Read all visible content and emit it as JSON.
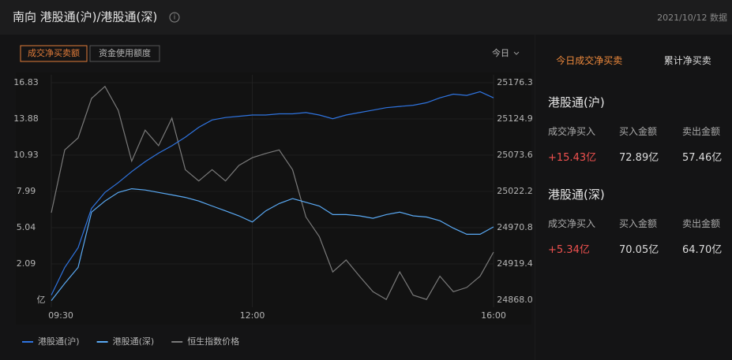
{
  "header": {
    "title": "南向 港股通(沪)/港股通(深)",
    "date": "2021/10/12 数据"
  },
  "toolbar": {
    "buttons": [
      "成交净买卖额",
      "资金使用额度"
    ],
    "period": "今日"
  },
  "chart_data": {
    "type": "line",
    "categories": [
      "09:30",
      null,
      null,
      null,
      null,
      null,
      null,
      null,
      null,
      null,
      null,
      null,
      null,
      null,
      null,
      "12:00",
      null,
      null,
      null,
      null,
      null,
      null,
      null,
      null,
      null,
      null,
      null,
      null,
      null,
      null,
      null,
      null,
      null,
      "16:00"
    ],
    "ylim": [
      -0.86,
      16.83
    ],
    "yticks": [
      2.09,
      5.04,
      7.99,
      10.93,
      13.88,
      16.83
    ],
    "y_unit": "亿",
    "y2lim": [
      24868,
      25176.3
    ],
    "y2ticks": [
      {
        "value": 24868,
        "label": "24868.0"
      },
      24919.4,
      24970.8,
      25022.2,
      25073.6,
      25124.9,
      25176.3
    ],
    "series": [
      {
        "name": "港股通(沪)",
        "color": "#2f74e0",
        "values": [
          -0.45,
          1.8,
          3.4,
          6.6,
          7.9,
          8.7,
          9.6,
          10.4,
          11.1,
          11.7,
          12.4,
          13.2,
          13.8,
          14.0,
          14.1,
          14.2,
          14.2,
          14.3,
          14.3,
          14.4,
          14.2,
          13.9,
          14.2,
          14.4,
          14.6,
          14.8,
          14.9,
          15.0,
          15.2,
          15.6,
          15.9,
          15.8,
          16.1,
          15.6
        ]
      },
      {
        "name": "港股通(深)",
        "color": "#5aaaf5",
        "values": [
          -0.9,
          0.5,
          1.8,
          6.3,
          7.2,
          7.9,
          8.2,
          8.1,
          7.9,
          7.7,
          7.5,
          7.2,
          6.8,
          6.4,
          6.0,
          5.5,
          6.4,
          7.0,
          7.4,
          7.1,
          6.8,
          6.1,
          6.1,
          6.0,
          5.8,
          6.1,
          6.3,
          6.0,
          5.9,
          5.6,
          5.0,
          4.5,
          4.5,
          5.1
        ]
      },
      {
        "name": "恒生指数价格",
        "color": "#7a7a7a",
        "axis": "y2",
        "values": [
          24992,
          25081,
          25098,
          25154,
          25171,
          25137,
          25065,
          25109,
          25087,
          25126,
          25053,
          25037,
          25053,
          25037,
          25059,
          25070,
          25076,
          25081,
          25053,
          24986,
          24958,
          24908,
          24925,
          24902,
          24880,
          24869,
          24908,
          24875,
          24869,
          24902,
          24880,
          24886,
          24902,
          24936
        ]
      }
    ]
  },
  "side": {
    "tabs": [
      "今日成交净买卖",
      "累计净买卖"
    ],
    "sections": [
      {
        "title": "港股通(沪)",
        "headers": [
          "成交净买入",
          "买入金额",
          "卖出金额"
        ],
        "values": [
          "+15.43亿",
          "72.89亿",
          "57.46亿"
        ]
      },
      {
        "title": "港股通(深)",
        "headers": [
          "成交净买入",
          "买入金额",
          "卖出金额"
        ],
        "values": [
          "+5.34亿",
          "70.05亿",
          "64.70亿"
        ]
      }
    ]
  }
}
